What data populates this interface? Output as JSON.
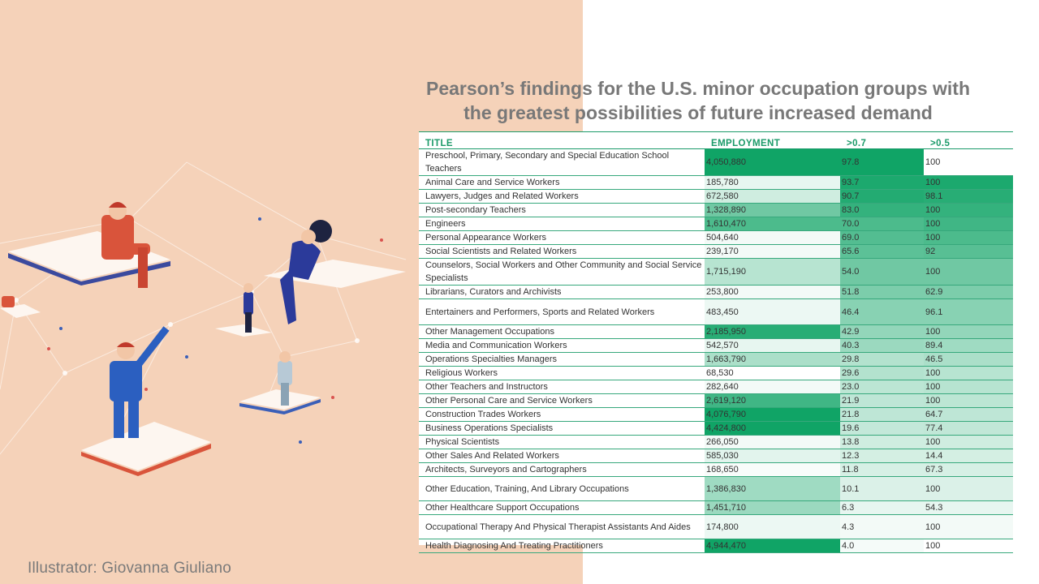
{
  "slide": {
    "title_line1": "Pearson’s findings for the U.S. minor occupation groups with",
    "title_line2": "the greatest possibilities of future increased demand",
    "credit": "Illustrator: Giovanna Giuliano"
  },
  "colors": {
    "panel_bg": "#f5d2b9",
    "accent_green": "#1b9a69",
    "dark_green": "#0fa366"
  },
  "table": {
    "headers": [
      "TITLE",
      "EMPLOYMENT",
      ">0.7",
      ">0.5"
    ],
    "rows": [
      {
        "title": "Preschool, Primary, Secondary and Special Education School Teachers",
        "employment": "4,050,880",
        "p07": "97.8",
        "p05": "100",
        "s_emp": 1.0,
        "s_p07": 1.0,
        "s_p05": 0.0
      },
      {
        "title": "Animal Care and Service Workers",
        "employment": "185,780",
        "p07": "93.7",
        "p05": "100",
        "s_emp": 0.1,
        "s_p07": 0.95,
        "s_p05": 0.0
      },
      {
        "title": "Lawyers, Judges and Related Workers",
        "employment": "672,580",
        "p07": "90.7",
        "p05": "98.1",
        "s_emp": 0.2,
        "s_p07": 0.92,
        "s_p05": 0.0
      },
      {
        "title": "Post-secondary Teachers",
        "employment": "1,328,890",
        "p07": "83.0",
        "p05": "100",
        "s_emp": 0.6,
        "s_p07": 0.85,
        "s_p05": 0.0
      },
      {
        "title": "Engineers",
        "employment": "1,610,470",
        "p07": "70.0",
        "p05": "100",
        "s_emp": 0.75,
        "s_p07": 0.75,
        "s_p05": 0.0
      },
      {
        "title": "Personal Appearance Workers",
        "employment": "504,640",
        "p07": "69.0",
        "p05": "100",
        "s_emp": 0.05,
        "s_p07": 0.72,
        "s_p05": 0.0
      },
      {
        "title": "Social Scientists and Related Workers",
        "employment": "239,170",
        "p07": "65.6",
        "p05": "92",
        "s_emp": 0.05,
        "s_p07": 0.68,
        "s_p05": 0.0
      },
      {
        "title": "Counselors, Social Workers and Other Community and Social Service Specialists",
        "employment": "1,715,190",
        "p07": "54.0",
        "p05": "100",
        "s_emp": 0.3,
        "s_p07": 0.6,
        "s_p05": 0.0
      },
      {
        "title": "Librarians, Curators and Archivists",
        "employment": "253,800",
        "p07": "51.8",
        "p05": "62.9",
        "s_emp": 0.05,
        "s_p07": 0.55,
        "s_p05": 0.0
      },
      {
        "title": "Entertainers and Performers, Sports and Related Workers",
        "employment": "483,450",
        "p07": "46.4",
        "p05": "96.1",
        "s_emp": 0.08,
        "s_p07": 0.5,
        "s_p05": 0.0
      },
      {
        "title": "Other Management Occupations",
        "employment": "2,185,950",
        "p07": "42.9",
        "p05": "100",
        "s_emp": 0.9,
        "s_p07": 0.45,
        "s_p05": 0.0
      },
      {
        "title": "Media and Communication Workers",
        "employment": "542,570",
        "p07": "40.3",
        "p05": "89.4",
        "s_emp": 0.1,
        "s_p07": 0.42,
        "s_p05": 0.0
      },
      {
        "title": "Operations Specialties Managers",
        "employment": "1,663,790",
        "p07": "29.8",
        "p05": "46.5",
        "s_emp": 0.35,
        "s_p07": 0.32,
        "s_p05": 0.0
      },
      {
        "title": "Religious Workers",
        "employment": "68,530",
        "p07": "29.6",
        "p05": "100",
        "s_emp": 0.0,
        "s_p07": 0.32,
        "s_p05": 0.0
      },
      {
        "title": "Other Teachers and Instructors",
        "employment": "282,640",
        "p07": "23.0",
        "p05": "100",
        "s_emp": 0.05,
        "s_p07": 0.28,
        "s_p05": 0.0
      },
      {
        "title": "Other Personal Care and Service Workers",
        "employment": "2,619,120",
        "p07": "21.9",
        "p05": "100",
        "s_emp": 0.8,
        "s_p07": 0.27,
        "s_p05": 0.0
      },
      {
        "title": "Construction Trades Workers",
        "employment": "4,076,790",
        "p07": "21.8",
        "p05": "64.7",
        "s_emp": 1.0,
        "s_p07": 0.27,
        "s_p05": 0.0
      },
      {
        "title": "Business Operations Specialists",
        "employment": "4,424,800",
        "p07": "19.6",
        "p05": "77.4",
        "s_emp": 1.0,
        "s_p07": 0.25,
        "s_p05": 0.0
      },
      {
        "title": "Physical Scientists",
        "employment": "266,050",
        "p07": "13.8",
        "p05": "100",
        "s_emp": 0.05,
        "s_p07": 0.2,
        "s_p05": 0.0
      },
      {
        "title": "Other Sales And Related Workers",
        "employment": "585,030",
        "p07": "12.3",
        "p05": "14.4",
        "s_emp": 0.12,
        "s_p07": 0.18,
        "s_p05": 0.0
      },
      {
        "title": "Architects, Surveyors and Cartographers",
        "employment": "168,650",
        "p07": "11.8",
        "p05": "67.3",
        "s_emp": 0.03,
        "s_p07": 0.17,
        "s_p05": 0.0
      },
      {
        "title": "Other Education, Training, And Library Occupations",
        "employment": "1,386,830",
        "p07": "10.1",
        "p05": "100",
        "s_emp": 0.4,
        "s_p07": 0.15,
        "s_p05": 0.0
      },
      {
        "title": "Other Healthcare Support Occupations",
        "employment": "1,451,710",
        "p07": "6.3",
        "p05": "54.3",
        "s_emp": 0.42,
        "s_p07": 0.1,
        "s_p05": 0.0
      },
      {
        "title": "Occupational Therapy And Physical Therapist Assistants And Aides",
        "employment": "174,800",
        "p07": "4.3",
        "p05": "100",
        "s_emp": 0.08,
        "s_p07": 0.05,
        "s_p05": 0.0
      },
      {
        "title": "Health Diagnosing And Treating Practitioners",
        "employment": "4,944,470",
        "p07": "4.0",
        "p05": "100",
        "s_emp": 1.0,
        "s_p07": 0.04,
        "s_p05": 0.0
      }
    ]
  },
  "row_heights": [
    32,
    16,
    16,
    16,
    16,
    16,
    16,
    32,
    16,
    32,
    16,
    16,
    16,
    16,
    16,
    16,
    16,
    16,
    16,
    16,
    16,
    30,
    16,
    30,
    16
  ],
  "p05_shades": [
    0,
    0.95,
    0.9,
    0.85,
    0.8,
    0.75,
    0.7,
    0.6,
    0.55,
    0.5,
    0.45,
    0.4,
    0.35,
    0.3,
    0.3,
    0.28,
    0.27,
    0.26,
    0.2,
    0.18,
    0.17,
    0.15,
    0.1,
    0.05,
    0.0
  ]
}
